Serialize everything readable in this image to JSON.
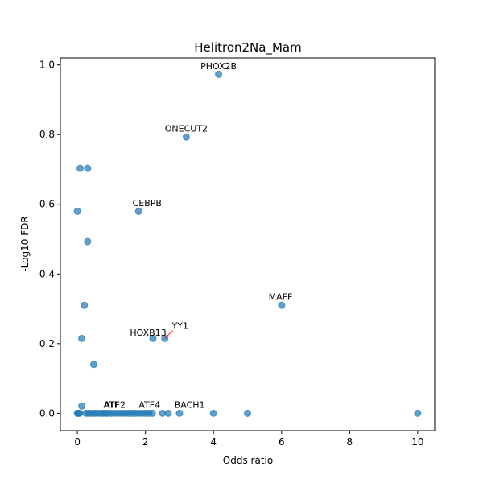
{
  "chart_data": {
    "type": "scatter",
    "title": "Helitron2Na_Mam",
    "xlabel": "Odds ratio",
    "ylabel": "-Log10 FDR",
    "xlim": [
      -0.5,
      10.5
    ],
    "ylim": [
      -0.05,
      1.02
    ],
    "xticks": [
      0,
      2,
      4,
      6,
      8,
      10
    ],
    "xtick_labels": [
      "0",
      "2",
      "4",
      "6",
      "8",
      "10"
    ],
    "yticks": [
      0.0,
      0.2,
      0.4,
      0.6,
      0.8,
      1.0
    ],
    "ytick_labels": [
      "0.0",
      "0.2",
      "0.4",
      "0.6",
      "0.8",
      "1.0"
    ],
    "grid": false,
    "legend": "none",
    "marker_color": "#1f77b4",
    "leader_color": "#ff0000",
    "points": [
      {
        "x": 4.15,
        "y": 0.973
      },
      {
        "x": 3.2,
        "y": 0.793
      },
      {
        "x": 0.08,
        "y": 0.703
      },
      {
        "x": 0.3,
        "y": 0.703
      },
      {
        "x": 0.0,
        "y": 0.58
      },
      {
        "x": 1.8,
        "y": 0.58
      },
      {
        "x": 0.3,
        "y": 0.493
      },
      {
        "x": 0.2,
        "y": 0.31
      },
      {
        "x": 6.0,
        "y": 0.31
      },
      {
        "x": 0.13,
        "y": 0.215
      },
      {
        "x": 2.22,
        "y": 0.215
      },
      {
        "x": 2.57,
        "y": 0.215
      },
      {
        "x": 0.48,
        "y": 0.14
      },
      {
        "x": 0.13,
        "y": 0.021
      },
      {
        "x": 0.0,
        "y": 0.0
      },
      {
        "x": 0.03,
        "y": 0.0
      },
      {
        "x": 0.06,
        "y": 0.0
      },
      {
        "x": 0.25,
        "y": 0.0
      },
      {
        "x": 0.33,
        "y": 0.0
      },
      {
        "x": 0.4,
        "y": 0.0
      },
      {
        "x": 0.5,
        "y": 0.0
      },
      {
        "x": 0.57,
        "y": 0.0
      },
      {
        "x": 0.67,
        "y": 0.0
      },
      {
        "x": 0.75,
        "y": 0.0
      },
      {
        "x": 0.83,
        "y": 0.0
      },
      {
        "x": 0.9,
        "y": 0.0
      },
      {
        "x": 1.0,
        "y": 0.0
      },
      {
        "x": 1.1,
        "y": 0.0
      },
      {
        "x": 1.2,
        "y": 0.0
      },
      {
        "x": 1.3,
        "y": 0.0
      },
      {
        "x": 1.4,
        "y": 0.0
      },
      {
        "x": 1.5,
        "y": 0.0
      },
      {
        "x": 1.6,
        "y": 0.0
      },
      {
        "x": 1.7,
        "y": 0.0
      },
      {
        "x": 1.8,
        "y": 0.0
      },
      {
        "x": 1.9,
        "y": 0.0
      },
      {
        "x": 2.0,
        "y": 0.0
      },
      {
        "x": 2.1,
        "y": 0.0
      },
      {
        "x": 2.2,
        "y": 0.0
      },
      {
        "x": 2.5,
        "y": 0.0
      },
      {
        "x": 2.67,
        "y": 0.0
      },
      {
        "x": 3.0,
        "y": 0.0
      },
      {
        "x": 4.0,
        "y": 0.0
      },
      {
        "x": 5.0,
        "y": 0.0
      },
      {
        "x": 10.0,
        "y": 0.0
      }
    ],
    "annotations": [
      {
        "label": "PHOX2B",
        "x": 4.15,
        "y": 0.973,
        "text_x": 4.15,
        "text_y": 0.988,
        "anchor": "middle"
      },
      {
        "label": "ONECUT2",
        "x": 3.2,
        "y": 0.793,
        "text_x": 3.2,
        "text_y": 0.808,
        "anchor": "middle"
      },
      {
        "label": "CEBPB",
        "x": 1.8,
        "y": 0.58,
        "text_x": 2.05,
        "text_y": 0.595,
        "anchor": "middle"
      },
      {
        "label": "MAFF",
        "x": 6.0,
        "y": 0.31,
        "text_x": 5.97,
        "text_y": 0.325,
        "anchor": "middle"
      },
      {
        "label": "YY1",
        "x": 2.57,
        "y": 0.215,
        "text_x": 3.02,
        "text_y": 0.242,
        "anchor": "middle",
        "leader": true
      },
      {
        "label": "HOXB13",
        "x": 2.22,
        "y": 0.215,
        "text_x": 2.08,
        "text_y": 0.223,
        "anchor": "middle"
      },
      {
        "label": "ATF4",
        "x": 2.1,
        "y": 0.0,
        "text_x": 2.12,
        "text_y": 0.016,
        "anchor": "middle"
      },
      {
        "label": "BACH1",
        "x": 3.3,
        "y": 0.0,
        "text_x": 3.3,
        "text_y": 0.016,
        "anchor": "middle"
      },
      {
        "label": "ATF2",
        "x": 0.95,
        "y": 0.0,
        "text_x": 1.1,
        "text_y": 0.016,
        "anchor": "middle"
      },
      {
        "label": "ATF",
        "x": 0.9,
        "y": 0.0,
        "text_x": 1.0,
        "text_y": 0.016,
        "anchor": "middle"
      }
    ]
  }
}
